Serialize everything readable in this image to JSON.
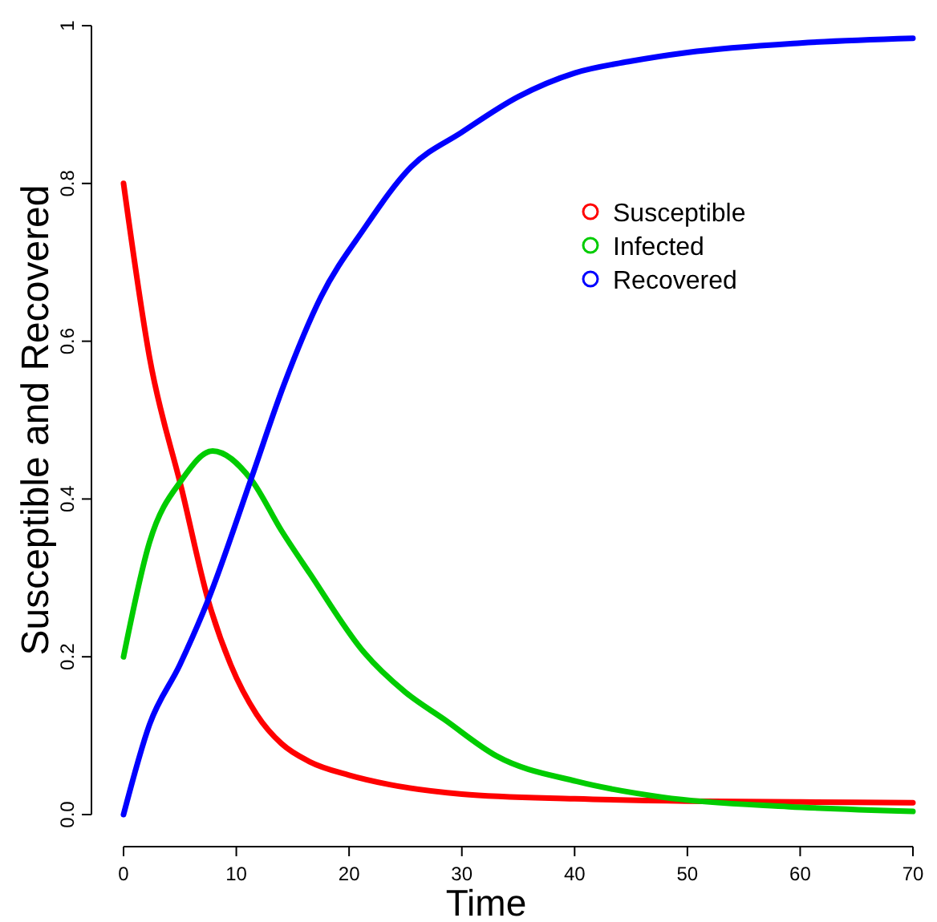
{
  "chart_data": {
    "type": "line",
    "xlabel": "Time",
    "ylabel": "Susceptible and Recovered",
    "xlim": [
      0,
      70
    ],
    "ylim": [
      0,
      1
    ],
    "xticks": [
      0,
      10,
      20,
      30,
      40,
      50,
      60,
      70
    ],
    "yticks": [
      {
        "value": 0,
        "label": "0.0"
      },
      0.2,
      0.4,
      0.6,
      0.8,
      1
    ],
    "legend": "top right",
    "marker": "none",
    "line_style": "solid",
    "grid": false,
    "series": [
      {
        "name": "Susceptible",
        "color": "#ff0000",
        "x": [
          0,
          2.3,
          5.2,
          7.5,
          9.5,
          11.8,
          14,
          16.5,
          20,
          23.6,
          30,
          40,
          50,
          60,
          70
        ],
        "values": [
          0.8,
          0.58,
          0.41,
          0.272,
          0.19,
          0.127,
          0.09,
          0.067,
          0.05,
          0.038,
          0.026,
          0.02,
          0.017,
          0.016,
          0.015
        ]
      },
      {
        "name": "Infected",
        "color": "#00cc00",
        "x": [
          0,
          2.3,
          5.2,
          7.9,
          11.3,
          14,
          16.5,
          21.3,
          25,
          28.4,
          33.1,
          40.2,
          47.8,
          59,
          70
        ],
        "values": [
          0.2,
          0.345,
          0.425,
          0.461,
          0.425,
          0.36,
          0.306,
          0.206,
          0.155,
          0.121,
          0.074,
          0.042,
          0.022,
          0.01,
          0.004
        ]
      },
      {
        "name": "Recovered",
        "color": "#0000ff",
        "x": [
          0,
          2.3,
          5,
          7.5,
          11.3,
          14.2,
          17.5,
          21.3,
          25.5,
          30,
          35,
          40,
          45,
          50,
          60,
          70
        ],
        "values": [
          0,
          0.114,
          0.19,
          0.272,
          0.425,
          0.544,
          0.656,
          0.742,
          0.821,
          0.865,
          0.91,
          0.94,
          0.955,
          0.966,
          0.978,
          0.984
        ]
      }
    ]
  }
}
